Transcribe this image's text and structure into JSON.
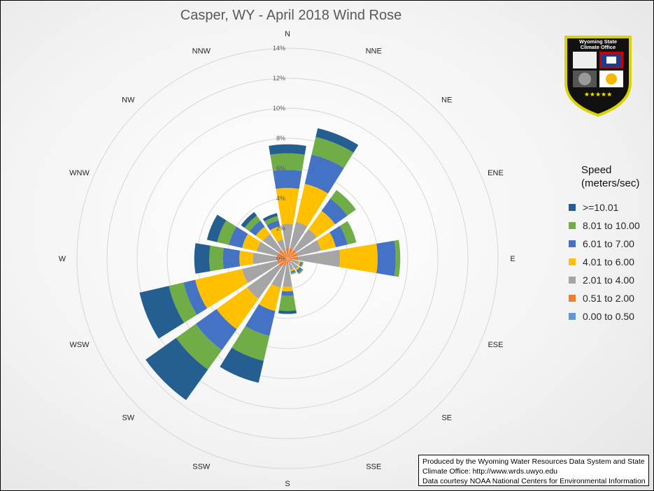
{
  "chart_data": {
    "type": "wind_rose",
    "title": "Casper, WY - April 2018 Wind Rose",
    "directions": [
      "N",
      "NNE",
      "NE",
      "ENE",
      "E",
      "ESE",
      "SE",
      "SSE",
      "S",
      "SSW",
      "SW",
      "WSW",
      "W",
      "WNW",
      "NW",
      "NNW"
    ],
    "radial_ticks": [
      "0%",
      "2%",
      "4%",
      "6%",
      "8%",
      "10%",
      "12%",
      "14%"
    ],
    "rlim": [
      0,
      14
    ],
    "legend_title": "Speed (meters/sec)",
    "legend_position": "right",
    "series": [
      {
        "name": "0.00 to 0.50",
        "color": "#5b9bd5",
        "values": [
          0,
          0,
          0,
          0,
          0,
          0,
          0,
          0,
          0,
          0,
          0,
          0,
          0,
          0,
          0,
          0
        ]
      },
      {
        "name": "0.51 to 2.00",
        "color": "#ed7d31",
        "values": [
          0.7,
          0.7,
          0.7,
          0.7,
          0.7,
          0.3,
          0.3,
          0.3,
          0.4,
          0.5,
          0.7,
          0.7,
          0.7,
          0.7,
          0.7,
          0.5
        ]
      },
      {
        "name": "2.01 to 4.00",
        "color": "#a5a5a5",
        "values": [
          1.6,
          1.8,
          1.7,
          1.6,
          2.8,
          0.5,
          0.6,
          0.5,
          1.5,
          1.5,
          2.6,
          2.4,
          1.6,
          1.4,
          1.3,
          0.8
        ]
      },
      {
        "name": "4.01 to 6.00",
        "color": "#ffc000",
        "values": [
          2.4,
          2.6,
          1.5,
          1.0,
          2.5,
          0.1,
          0.1,
          0.1,
          0.3,
          1.6,
          2.5,
          3.2,
          0.9,
          1.0,
          0.6,
          0.9
        ]
      },
      {
        "name": "6.01 to 7.00",
        "color": "#4472c4",
        "values": [
          1.2,
          2.0,
          1.0,
          0.8,
          1.2,
          0.1,
          0.2,
          0.1,
          0.3,
          1.7,
          1.7,
          0.8,
          1.1,
          0.9,
          0.5,
          0.4
        ]
      },
      {
        "name": "8.01 to 10.00",
        "color": "#70ad47",
        "values": [
          1.1,
          1.2,
          0.7,
          0.6,
          0.3,
          0.1,
          0.1,
          0.1,
          1.0,
          1.7,
          1.6,
          1.0,
          0.9,
          0.8,
          0.4,
          0.3
        ]
      },
      {
        "name": ">=10.01",
        "color": "#255e91",
        "values": [
          0.6,
          0.6,
          0,
          0,
          0,
          0,
          0,
          0,
          0.2,
          1.5,
          2.5,
          2.0,
          1.0,
          0.7,
          0.3,
          0.2
        ]
      }
    ],
    "legend_order": [
      ">=10.01",
      "8.01 to 10.00",
      "6.01 to 7.00",
      "4.01 to 6.00",
      "2.01 to 4.00",
      "0.51 to 2.00",
      "0.00 to 0.50"
    ]
  },
  "logo": {
    "line1": "Wyoming State",
    "line2": "Climate Office"
  },
  "credit": {
    "line1": "Produced by the Wyoming Water Resources Data System and State",
    "line2": "Climate Office: http://www.wrds.uwyo.edu",
    "line3": "Data courtesy NOAA National Centers for Environmental Information"
  }
}
